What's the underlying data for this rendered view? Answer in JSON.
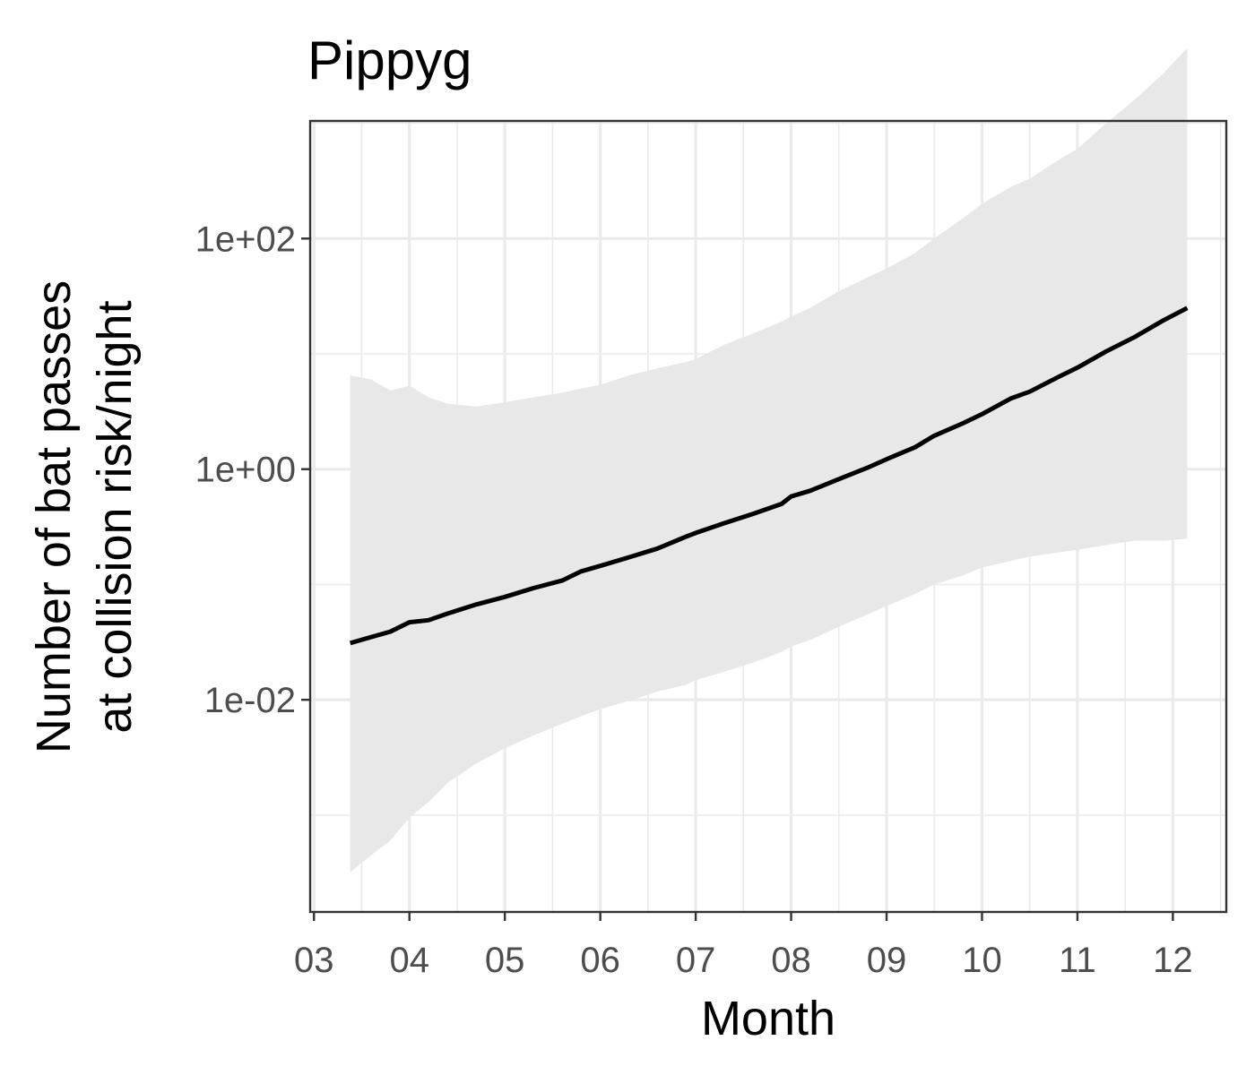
{
  "chart_data": {
    "type": "line",
    "title": "Pippyg",
    "xlabel": "Month",
    "ylabel": [
      "Number of bat passes",
      "at collision risk/night"
    ],
    "yscale": "log10",
    "xlim": [
      2.96,
      12.56
    ],
    "ylim_log10": [
      -3.84,
      3.02
    ],
    "grid": true,
    "x_ticks": [
      {
        "value": 3,
        "label": "03"
      },
      {
        "value": 4,
        "label": "04"
      },
      {
        "value": 5,
        "label": "05"
      },
      {
        "value": 6,
        "label": "06"
      },
      {
        "value": 7,
        "label": "07"
      },
      {
        "value": 8,
        "label": "08"
      },
      {
        "value": 9,
        "label": "09"
      },
      {
        "value": 10,
        "label": "10"
      },
      {
        "value": 11,
        "label": "11"
      },
      {
        "value": 12,
        "label": "12"
      }
    ],
    "y_ticks": [
      {
        "value": 0.01,
        "label": "1e-02"
      },
      {
        "value": 1,
        "label": "1e+00"
      },
      {
        "value": 100,
        "label": "1e+02"
      }
    ],
    "y_minor_grid": [
      0.001,
      0.1,
      10,
      1000
    ],
    "colors": {
      "line": "#000000",
      "ribbon": "#e8e8e8",
      "grid": "#ebebeb",
      "panel_border": "#333333"
    },
    "series": [
      {
        "x": [
          3.38,
          3.6,
          3.8,
          4.0,
          4.2,
          4.4,
          4.7,
          5.0,
          5.3,
          5.6,
          5.8,
          6.0,
          6.3,
          6.6,
          6.9,
          7.0,
          7.3,
          7.6,
          7.9,
          8.0,
          8.2,
          8.5,
          8.8,
          9.0,
          9.3,
          9.5,
          9.8,
          10.0,
          10.3,
          10.5,
          10.8,
          11.0,
          11.3,
          11.6,
          11.9,
          12.15
        ],
        "y": [
          0.031,
          0.035,
          0.039,
          0.047,
          0.049,
          0.056,
          0.067,
          0.078,
          0.093,
          0.108,
          0.13,
          0.145,
          0.172,
          0.205,
          0.26,
          0.28,
          0.34,
          0.41,
          0.5,
          0.58,
          0.65,
          0.82,
          1.03,
          1.22,
          1.55,
          1.95,
          2.5,
          3.0,
          4.1,
          4.7,
          6.3,
          7.6,
          10.5,
          14.0,
          19.5,
          25.0
        ],
        "lower": [
          0.00032,
          0.00045,
          0.0006,
          0.00095,
          0.0013,
          0.0019,
          0.0028,
          0.0038,
          0.0049,
          0.0062,
          0.0072,
          0.0083,
          0.0098,
          0.0118,
          0.0135,
          0.0148,
          0.0175,
          0.021,
          0.026,
          0.029,
          0.033,
          0.043,
          0.055,
          0.065,
          0.083,
          0.1,
          0.12,
          0.14,
          0.16,
          0.175,
          0.19,
          0.2,
          0.22,
          0.24,
          0.24,
          0.25
        ],
        "upper": [
          6.5,
          6.0,
          4.8,
          5.3,
          4.2,
          3.7,
          3.5,
          3.8,
          4.2,
          4.6,
          5.0,
          5.4,
          6.5,
          7.5,
          8.5,
          9.0,
          12.0,
          15.0,
          19.0,
          21.0,
          25.0,
          35.0,
          46.0,
          55.0,
          75.0,
          100.0,
          150.0,
          200.0,
          280.0,
          330.0,
          480.0,
          600.0,
          1000.0,
          1600.0,
          2700.0,
          4500.0
        ]
      }
    ]
  }
}
